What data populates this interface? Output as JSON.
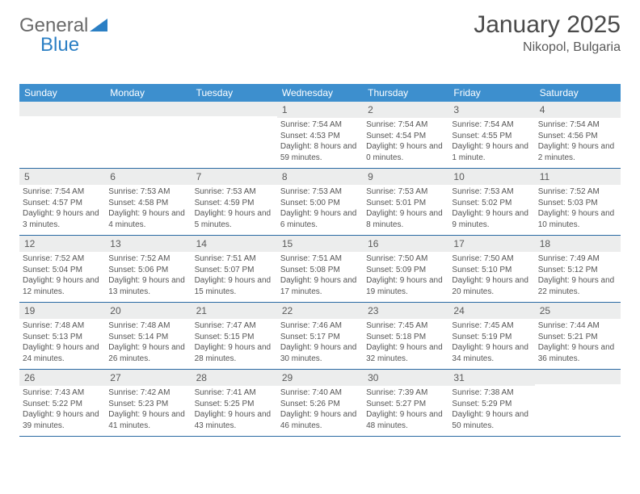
{
  "logo": {
    "text1": "General",
    "text2": "Blue"
  },
  "title": "January 2025",
  "location": "Nikopol, Bulgaria",
  "colors": {
    "header_bg": "#3d8fce",
    "header_text": "#ffffff",
    "band_bg": "#eceded",
    "rule": "#2a6aa3",
    "body_text": "#555555",
    "logo_gray": "#6a6a6a",
    "logo_blue": "#2b7fc4"
  },
  "day_headers": [
    "Sunday",
    "Monday",
    "Tuesday",
    "Wednesday",
    "Thursday",
    "Friday",
    "Saturday"
  ],
  "weeks": [
    [
      {
        "n": "",
        "sr": "",
        "ss": "",
        "dl": ""
      },
      {
        "n": "",
        "sr": "",
        "ss": "",
        "dl": ""
      },
      {
        "n": "",
        "sr": "",
        "ss": "",
        "dl": ""
      },
      {
        "n": "1",
        "sr": "Sunrise: 7:54 AM",
        "ss": "Sunset: 4:53 PM",
        "dl": "Daylight: 8 hours and 59 minutes."
      },
      {
        "n": "2",
        "sr": "Sunrise: 7:54 AM",
        "ss": "Sunset: 4:54 PM",
        "dl": "Daylight: 9 hours and 0 minutes."
      },
      {
        "n": "3",
        "sr": "Sunrise: 7:54 AM",
        "ss": "Sunset: 4:55 PM",
        "dl": "Daylight: 9 hours and 1 minute."
      },
      {
        "n": "4",
        "sr": "Sunrise: 7:54 AM",
        "ss": "Sunset: 4:56 PM",
        "dl": "Daylight: 9 hours and 2 minutes."
      }
    ],
    [
      {
        "n": "5",
        "sr": "Sunrise: 7:54 AM",
        "ss": "Sunset: 4:57 PM",
        "dl": "Daylight: 9 hours and 3 minutes."
      },
      {
        "n": "6",
        "sr": "Sunrise: 7:53 AM",
        "ss": "Sunset: 4:58 PM",
        "dl": "Daylight: 9 hours and 4 minutes."
      },
      {
        "n": "7",
        "sr": "Sunrise: 7:53 AM",
        "ss": "Sunset: 4:59 PM",
        "dl": "Daylight: 9 hours and 5 minutes."
      },
      {
        "n": "8",
        "sr": "Sunrise: 7:53 AM",
        "ss": "Sunset: 5:00 PM",
        "dl": "Daylight: 9 hours and 6 minutes."
      },
      {
        "n": "9",
        "sr": "Sunrise: 7:53 AM",
        "ss": "Sunset: 5:01 PM",
        "dl": "Daylight: 9 hours and 8 minutes."
      },
      {
        "n": "10",
        "sr": "Sunrise: 7:53 AM",
        "ss": "Sunset: 5:02 PM",
        "dl": "Daylight: 9 hours and 9 minutes."
      },
      {
        "n": "11",
        "sr": "Sunrise: 7:52 AM",
        "ss": "Sunset: 5:03 PM",
        "dl": "Daylight: 9 hours and 10 minutes."
      }
    ],
    [
      {
        "n": "12",
        "sr": "Sunrise: 7:52 AM",
        "ss": "Sunset: 5:04 PM",
        "dl": "Daylight: 9 hours and 12 minutes."
      },
      {
        "n": "13",
        "sr": "Sunrise: 7:52 AM",
        "ss": "Sunset: 5:06 PM",
        "dl": "Daylight: 9 hours and 13 minutes."
      },
      {
        "n": "14",
        "sr": "Sunrise: 7:51 AM",
        "ss": "Sunset: 5:07 PM",
        "dl": "Daylight: 9 hours and 15 minutes."
      },
      {
        "n": "15",
        "sr": "Sunrise: 7:51 AM",
        "ss": "Sunset: 5:08 PM",
        "dl": "Daylight: 9 hours and 17 minutes."
      },
      {
        "n": "16",
        "sr": "Sunrise: 7:50 AM",
        "ss": "Sunset: 5:09 PM",
        "dl": "Daylight: 9 hours and 19 minutes."
      },
      {
        "n": "17",
        "sr": "Sunrise: 7:50 AM",
        "ss": "Sunset: 5:10 PM",
        "dl": "Daylight: 9 hours and 20 minutes."
      },
      {
        "n": "18",
        "sr": "Sunrise: 7:49 AM",
        "ss": "Sunset: 5:12 PM",
        "dl": "Daylight: 9 hours and 22 minutes."
      }
    ],
    [
      {
        "n": "19",
        "sr": "Sunrise: 7:48 AM",
        "ss": "Sunset: 5:13 PM",
        "dl": "Daylight: 9 hours and 24 minutes."
      },
      {
        "n": "20",
        "sr": "Sunrise: 7:48 AM",
        "ss": "Sunset: 5:14 PM",
        "dl": "Daylight: 9 hours and 26 minutes."
      },
      {
        "n": "21",
        "sr": "Sunrise: 7:47 AM",
        "ss": "Sunset: 5:15 PM",
        "dl": "Daylight: 9 hours and 28 minutes."
      },
      {
        "n": "22",
        "sr": "Sunrise: 7:46 AM",
        "ss": "Sunset: 5:17 PM",
        "dl": "Daylight: 9 hours and 30 minutes."
      },
      {
        "n": "23",
        "sr": "Sunrise: 7:45 AM",
        "ss": "Sunset: 5:18 PM",
        "dl": "Daylight: 9 hours and 32 minutes."
      },
      {
        "n": "24",
        "sr": "Sunrise: 7:45 AM",
        "ss": "Sunset: 5:19 PM",
        "dl": "Daylight: 9 hours and 34 minutes."
      },
      {
        "n": "25",
        "sr": "Sunrise: 7:44 AM",
        "ss": "Sunset: 5:21 PM",
        "dl": "Daylight: 9 hours and 36 minutes."
      }
    ],
    [
      {
        "n": "26",
        "sr": "Sunrise: 7:43 AM",
        "ss": "Sunset: 5:22 PM",
        "dl": "Daylight: 9 hours and 39 minutes."
      },
      {
        "n": "27",
        "sr": "Sunrise: 7:42 AM",
        "ss": "Sunset: 5:23 PM",
        "dl": "Daylight: 9 hours and 41 minutes."
      },
      {
        "n": "28",
        "sr": "Sunrise: 7:41 AM",
        "ss": "Sunset: 5:25 PM",
        "dl": "Daylight: 9 hours and 43 minutes."
      },
      {
        "n": "29",
        "sr": "Sunrise: 7:40 AM",
        "ss": "Sunset: 5:26 PM",
        "dl": "Daylight: 9 hours and 46 minutes."
      },
      {
        "n": "30",
        "sr": "Sunrise: 7:39 AM",
        "ss": "Sunset: 5:27 PM",
        "dl": "Daylight: 9 hours and 48 minutes."
      },
      {
        "n": "31",
        "sr": "Sunrise: 7:38 AM",
        "ss": "Sunset: 5:29 PM",
        "dl": "Daylight: 9 hours and 50 minutes."
      },
      {
        "n": "",
        "sr": "",
        "ss": "",
        "dl": ""
      }
    ]
  ]
}
